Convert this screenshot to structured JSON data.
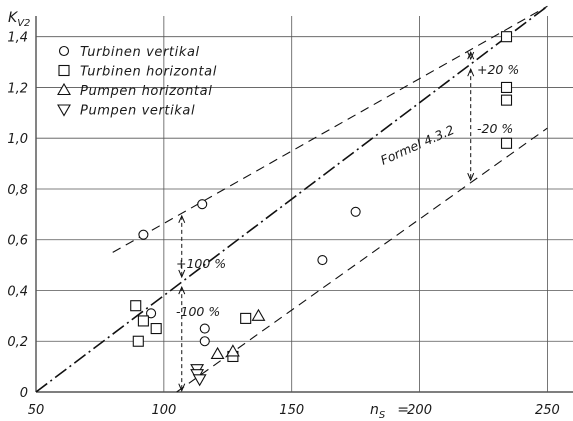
{
  "chart_data": {
    "type": "scatter",
    "ylabel_main": "K",
    "ylabel_sub": "V2",
    "xlabel": "n",
    "xlabel_sub": "S",
    "xlabel_eq": "=",
    "xlim": [
      50,
      260
    ],
    "ylim": [
      0,
      1.45
    ],
    "x_ticks": [
      {
        "v": 50,
        "label": "50"
      },
      {
        "v": 100,
        "label": "100"
      },
      {
        "v": 150,
        "label": "150"
      },
      {
        "v": 200,
        "label": "200"
      },
      {
        "v": 250,
        "label": "250"
      }
    ],
    "y_ticks": [
      {
        "v": 0,
        "label": "0"
      },
      {
        "v": 0.2,
        "label": "0,2"
      },
      {
        "v": 0.4,
        "label": "0,4"
      },
      {
        "v": 0.6,
        "label": "0,6"
      },
      {
        "v": 0.8,
        "label": "0,8"
      },
      {
        "v": 1.0,
        "label": "1,0"
      },
      {
        "v": 1.2,
        "label": "1,2"
      },
      {
        "v": 1.4,
        "label": "1,4"
      }
    ],
    "grid": true,
    "legend_position": "top-left",
    "series": [
      {
        "name": "Turbinen  vertikal",
        "marker": "circle",
        "points": [
          [
            92,
            0.62
          ],
          [
            115,
            0.74
          ],
          [
            95,
            0.31
          ],
          [
            116,
            0.25
          ],
          [
            116,
            0.2
          ],
          [
            162,
            0.52
          ],
          [
            175,
            0.71
          ]
        ]
      },
      {
        "name": "Turbinen  horizontal",
        "marker": "square",
        "points": [
          [
            89,
            0.34
          ],
          [
            92,
            0.28
          ],
          [
            97,
            0.25
          ],
          [
            90,
            0.2
          ],
          [
            132,
            0.29
          ],
          [
            127,
            0.14
          ],
          [
            234,
            1.4
          ],
          [
            234,
            1.2
          ],
          [
            234,
            1.15
          ],
          [
            234,
            0.98
          ]
        ]
      },
      {
        "name": "Pumpen  horizontal",
        "marker": "triangle-up",
        "points": [
          [
            121,
            0.15
          ],
          [
            127,
            0.16
          ],
          [
            137,
            0.3
          ]
        ]
      },
      {
        "name": "Pumpen  vertikal",
        "marker": "triangle-down",
        "points": [
          [
            113,
            0.09
          ],
          [
            113,
            0.07
          ],
          [
            114,
            0.05
          ]
        ]
      }
    ],
    "lines": [
      {
        "name": "formula",
        "style": "dashdot",
        "from": [
          50,
          0
        ],
        "to": [
          250,
          1.52
        ]
      },
      {
        "name": "upper",
        "style": "dashed",
        "from": [
          80,
          0.55
        ],
        "to": [
          250,
          1.52
        ]
      },
      {
        "name": "lower",
        "style": "dashed",
        "from": [
          105,
          0
        ],
        "to": [
          250,
          1.04
        ]
      }
    ],
    "annotations": {
      "formula_label": "Formel 4.3.2",
      "plus20": "+20 %",
      "minus20": "-20 %",
      "plus100": "+100 %",
      "minus100": "-100 %"
    }
  }
}
